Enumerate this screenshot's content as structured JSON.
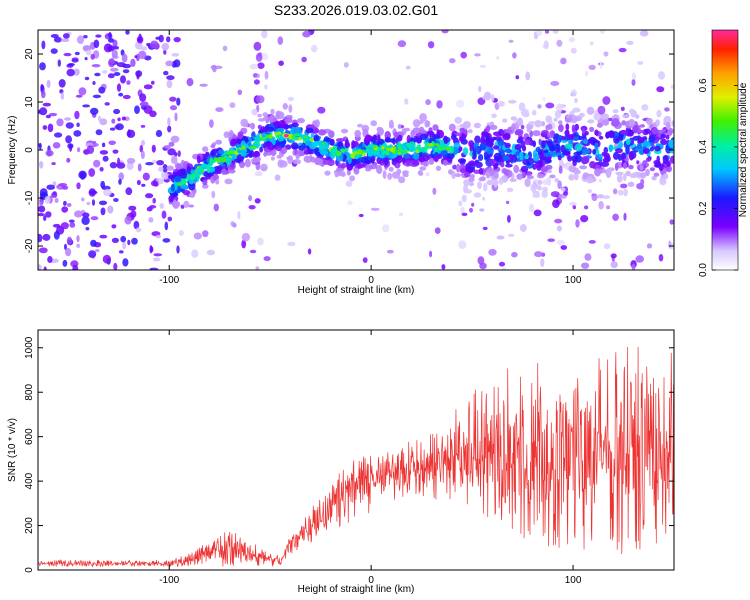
{
  "title": "S233.2026.019.03.02.G01",
  "chart_data": [
    {
      "type": "heatmap",
      "name": "spectrogram",
      "xlabel": "Height of straight line (km)",
      "ylabel": "Frequency (Hz)",
      "xlim": [
        -165,
        150
      ],
      "ylim": [
        -25,
        25
      ],
      "xticks": [
        -100,
        0,
        100
      ],
      "yticks": [
        -20,
        -10,
        0,
        10,
        20
      ],
      "colorbar": {
        "label": "Normalized spectral amplitude",
        "range": [
          0.0,
          0.78
        ],
        "ticks": [
          0.0,
          0.2,
          0.4,
          0.6
        ]
      },
      "signal_ridge": {
        "x": [
          -100,
          -90,
          -80,
          -70,
          -60,
          -50,
          -40,
          -30,
          -20,
          -10,
          0,
          10,
          20,
          30,
          40,
          50,
          60,
          70,
          80,
          90,
          100,
          110,
          120,
          130,
          140,
          150
        ],
        "freq": [
          -8,
          -6,
          -3,
          -1,
          1,
          3,
          3,
          2,
          0,
          -1,
          0,
          0,
          0,
          1,
          0,
          -1,
          0,
          0,
          -1,
          0,
          1,
          0,
          1,
          1,
          0,
          0
        ]
      },
      "peak": {
        "x": -42,
        "freq": 3,
        "amplitude": 0.78
      }
    },
    {
      "type": "line",
      "name": "snr",
      "xlabel": "Height of straight line (km)",
      "ylabel": "SNR (10 * v/v)",
      "xlim": [
        -165,
        150
      ],
      "ylim": [
        0,
        1080
      ],
      "xticks": [
        -100,
        0,
        100
      ],
      "yticks": [
        0,
        200,
        400,
        600,
        800,
        1000
      ],
      "color": "#ee3333",
      "envelope": {
        "x": [
          -165,
          -130,
          -100,
          -90,
          -80,
          -70,
          -60,
          -50,
          -45,
          -40,
          -30,
          -20,
          -10,
          0,
          10,
          20,
          30,
          40,
          50,
          60,
          70,
          80,
          90,
          100,
          110,
          120,
          130,
          140,
          150
        ],
        "low": [
          15,
          15,
          15,
          15,
          15,
          10,
          10,
          8,
          10,
          50,
          120,
          170,
          220,
          260,
          300,
          320,
          320,
          300,
          240,
          180,
          120,
          80,
          60,
          60,
          60,
          60,
          60,
          70,
          100
        ],
        "high": [
          45,
          45,
          45,
          80,
          140,
          180,
          140,
          90,
          60,
          190,
          300,
          400,
          500,
          550,
          570,
          580,
          620,
          700,
          880,
          900,
          920,
          940,
          960,
          980,
          990,
          1000,
          1020,
          1040,
          1000
        ]
      }
    }
  ]
}
